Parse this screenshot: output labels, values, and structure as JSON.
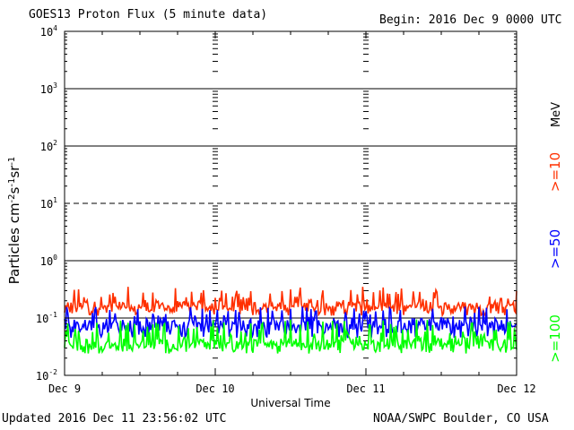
{
  "header": {
    "title": "GOES13 Proton Flux (5 minute data)",
    "begin": "Begin: 2016 Dec 9 0000 UTC"
  },
  "footer": {
    "updated": "Updated 2016 Dec 11 23:56:02 UTC",
    "source": "NOAA/SWPC Boulder, CO USA"
  },
  "chart_data": {
    "type": "line",
    "title": "GOES13 Proton Flux (5 minute data)",
    "xlabel": "Universal Time",
    "ylabel": "Particles cm⁻²s⁻¹sr⁻¹",
    "yscale": "log",
    "ylim": [
      0.01,
      10000
    ],
    "xlim": [
      "Dec 9",
      "Dec 12"
    ],
    "x_ticks": [
      "Dec 9",
      "Dec 10",
      "Dec 11",
      "Dec 12"
    ],
    "y_ticks": [
      {
        "base": "10",
        "exp": "-2",
        "value": 0.01
      },
      {
        "base": "10",
        "exp": "-1",
        "value": 0.1
      },
      {
        "base": "10",
        "exp": "0",
        "value": 1
      },
      {
        "base": "10",
        "exp": "1",
        "value": 10
      },
      {
        "base": "10",
        "exp": "2",
        "value": 100
      },
      {
        "base": "10",
        "exp": "3",
        "value": 1000
      },
      {
        "base": "10",
        "exp": "4",
        "value": 10000
      }
    ],
    "threshold_lines": [
      10
    ],
    "right_label": "MeV",
    "series": [
      {
        "name": ">=10",
        "color": "#ff3000",
        "min": 0.11,
        "max": 0.35,
        "typical": 0.16
      },
      {
        "name": ">=50",
        "color": "#0000ff",
        "min": 0.045,
        "max": 0.16,
        "typical": 0.075
      },
      {
        "name": ">=100",
        "color": "#00ff00",
        "min": 0.024,
        "max": 0.095,
        "typical": 0.035
      }
    ]
  }
}
